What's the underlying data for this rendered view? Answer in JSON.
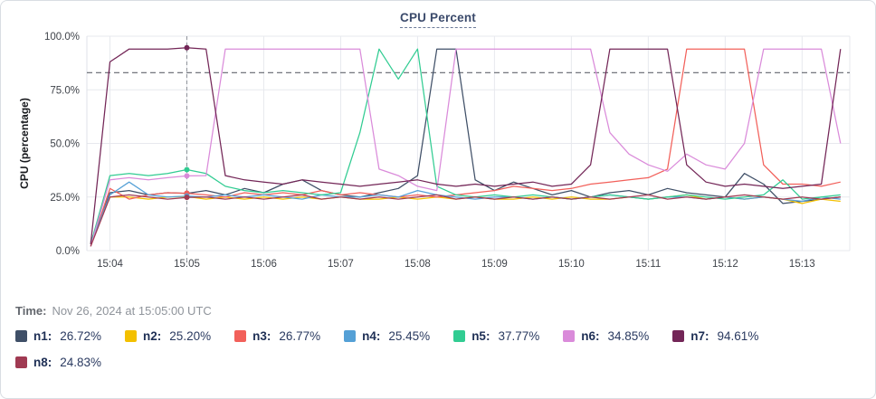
{
  "time_row": {
    "label": "Time:",
    "value": "Nov 26, 2024 at 15:05:00 UTC"
  },
  "chart_data": {
    "type": "line",
    "title": "CPU Percent",
    "xlabel": "",
    "ylabel": "CPU (percentage)",
    "grid": true,
    "legend_position": "bottom",
    "xlim": [
      3.7,
      13.62
    ],
    "ylim": [
      0,
      100
    ],
    "yticks": [
      0,
      25,
      50,
      75,
      100
    ],
    "yticklabels": [
      "0.0%",
      "25.0%",
      "50.0%",
      "75.0%",
      "100.0%"
    ],
    "xticks": [
      4,
      5,
      6,
      7,
      8,
      9,
      10,
      11,
      12,
      13
    ],
    "xticklabels": [
      "15:04",
      "15:05",
      "15:06",
      "15:07",
      "15:08",
      "15:09",
      "15:10",
      "15:11",
      "15:12",
      "15:13"
    ],
    "threshold_y": 83,
    "crosshair_x": 5,
    "crosshair_time": "15:05:00",
    "x": [
      3.75,
      4.0,
      4.25,
      4.5,
      4.75,
      5.0,
      5.25,
      5.5,
      5.75,
      6.0,
      6.25,
      6.5,
      6.75,
      7.0,
      7.25,
      7.5,
      7.75,
      8.0,
      8.25,
      8.5,
      8.75,
      9.0,
      9.25,
      9.5,
      9.75,
      10.0,
      10.25,
      10.5,
      10.75,
      11.0,
      11.25,
      11.5,
      11.75,
      12.0,
      12.25,
      12.5,
      12.75,
      13.0,
      13.25,
      13.5
    ],
    "series": [
      {
        "name": "n1",
        "legend_label": "n1:",
        "value_label": "26.72%",
        "color": "#3f4f67",
        "values": [
          4,
          27,
          28,
          26,
          27,
          26.72,
          28,
          26,
          29,
          27,
          31,
          33,
          28,
          26,
          25,
          27,
          29,
          35,
          94,
          94,
          33,
          28,
          32,
          29,
          26,
          28,
          25,
          27,
          28,
          26,
          29,
          27,
          26,
          25,
          36,
          31,
          22,
          23,
          24,
          25
        ]
      },
      {
        "name": "n2",
        "legend_label": "n2:",
        "value_label": "25.20%",
        "color": "#f3c000",
        "values": [
          3,
          25,
          25,
          24,
          25,
          25.2,
          24,
          25,
          24,
          25,
          24,
          25,
          24,
          25,
          24,
          24,
          25,
          24,
          25,
          24,
          25,
          24,
          24,
          25,
          24,
          25,
          24,
          24,
          25,
          24,
          25,
          26,
          24,
          25,
          24,
          25,
          24,
          22,
          24,
          23
        ]
      },
      {
        "name": "n3",
        "legend_label": "n3:",
        "value_label": "26.77%",
        "color": "#f2605a",
        "values": [
          2,
          29,
          24,
          26,
          27,
          26.77,
          26,
          25,
          27,
          26,
          27,
          26,
          28,
          26,
          27,
          26,
          25,
          26,
          25,
          26,
          27,
          28,
          30,
          29,
          28,
          29,
          31,
          32,
          33,
          34,
          38,
          94,
          94,
          94,
          94,
          40,
          31,
          31,
          30,
          32
        ]
      },
      {
        "name": "n4",
        "legend_label": "n4:",
        "value_label": "25.45%",
        "color": "#54a0d6",
        "values": [
          3,
          26,
          32,
          26,
          25,
          25.45,
          25,
          26,
          25,
          26,
          25,
          24,
          26,
          25,
          25,
          26,
          25,
          28,
          26,
          25,
          24,
          25,
          25,
          24,
          25,
          24,
          25,
          26,
          25,
          24,
          25,
          25,
          24,
          25,
          24,
          25,
          24,
          23,
          25,
          24
        ]
      },
      {
        "name": "n5",
        "legend_label": "n5:",
        "value_label": "37.77%",
        "color": "#31cc92",
        "values": [
          3,
          35,
          36,
          35,
          36,
          37.77,
          36,
          30,
          28,
          27,
          28,
          27,
          26,
          27,
          55,
          94,
          80,
          94,
          30,
          26,
          25,
          26,
          25,
          26,
          25,
          24,
          25,
          26,
          25,
          24,
          25,
          26,
          25,
          24,
          25,
          26,
          33,
          24,
          25,
          26
        ]
      },
      {
        "name": "n6",
        "legend_label": "n6:",
        "value_label": "34.85%",
        "color": "#da8bda",
        "values": [
          2,
          33,
          34,
          33,
          34,
          34.85,
          35,
          94,
          94,
          94,
          94,
          94,
          94,
          94,
          94,
          38,
          35,
          30,
          28,
          94,
          94,
          94,
          94,
          94,
          94,
          94,
          94,
          55,
          45,
          40,
          37,
          45,
          40,
          38,
          50,
          94,
          94,
          94,
          94,
          50
        ]
      },
      {
        "name": "n7",
        "legend_label": "n7:",
        "value_label": "94.61%",
        "color": "#732657",
        "values": [
          3,
          88,
          94,
          94,
          94,
          94.61,
          94,
          35,
          33,
          32,
          31,
          33,
          32,
          31,
          30,
          31,
          32,
          33,
          31,
          30,
          31,
          30,
          31,
          32,
          30,
          31,
          40,
          94,
          94,
          94,
          94,
          40,
          32,
          30,
          31,
          30,
          29,
          30,
          31,
          94
        ]
      },
      {
        "name": "n8",
        "legend_label": "n8:",
        "value_label": "24.83%",
        "color": "#a03a52",
        "values": [
          2,
          25,
          26,
          25,
          24,
          24.83,
          25,
          24,
          25,
          24,
          25,
          26,
          24,
          25,
          24,
          25,
          24,
          25,
          26,
          24,
          25,
          24,
          25,
          24,
          25,
          24,
          25,
          24,
          25,
          26,
          24,
          25,
          24,
          25,
          26,
          25,
          24,
          25,
          24,
          25
        ]
      }
    ]
  }
}
